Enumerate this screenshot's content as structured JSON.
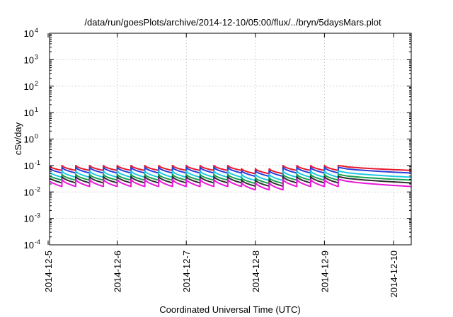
{
  "chart_data": {
    "type": "line",
    "title": "/data/run/goesPlots/archive/2014-12-10/05:00/flux/../bryn/5daysMars.plot",
    "xlabel": "Coordinated Universal Time (UTC)",
    "ylabel": "cSv/day",
    "yscale": "log",
    "ylim": [
      0.0001,
      10000
    ],
    "xlim": [
      "2014-12-05",
      "2014-12-10 05:00"
    ],
    "yticks": [
      {
        "value": 0.0001,
        "base": "10",
        "exp": "-4"
      },
      {
        "value": 0.001,
        "base": "10",
        "exp": "-3"
      },
      {
        "value": 0.01,
        "base": "10",
        "exp": "-2"
      },
      {
        "value": 0.1,
        "base": "10",
        "exp": "-1"
      },
      {
        "value": 1,
        "base": "10",
        "exp": "0"
      },
      {
        "value": 10,
        "base": "10",
        "exp": "1"
      },
      {
        "value": 100,
        "base": "10",
        "exp": "2"
      },
      {
        "value": 1000,
        "base": "10",
        "exp": "3"
      },
      {
        "value": 10000,
        "base": "10",
        "exp": "4"
      }
    ],
    "xticks": [
      "2014-12-5",
      "2014-12-6",
      "2014-12-7",
      "2014-12-8",
      "2014-12-9",
      "2014-12-10"
    ],
    "grid": true,
    "days": [
      0,
      0.2,
      0.4,
      0.6,
      0.8,
      1.0,
      1.2,
      1.4,
      1.6,
      1.8,
      2.0,
      2.2,
      2.4,
      2.6,
      2.8,
      3.0,
      3.2,
      3.4,
      3.6,
      3.8,
      4.0,
      4.2
    ],
    "series": [
      {
        "color": "#e8182a",
        "peak": 0.1,
        "low": 0.065
      },
      {
        "color": "#2a3fd8",
        "peak": 0.085,
        "low": 0.052
      },
      {
        "color": "#1ec8e0",
        "peak": 0.062,
        "low": 0.036
      },
      {
        "color": "#18a050",
        "peak": 0.046,
        "low": 0.028
      },
      {
        "color": "#303030",
        "peak": 0.038,
        "low": 0.022
      },
      {
        "color": "#e818d8",
        "peak": 0.03,
        "low": 0.016
      }
    ],
    "dip_start": 2.8,
    "dip_end": 3.2,
    "dip_factor": 0.75
  }
}
